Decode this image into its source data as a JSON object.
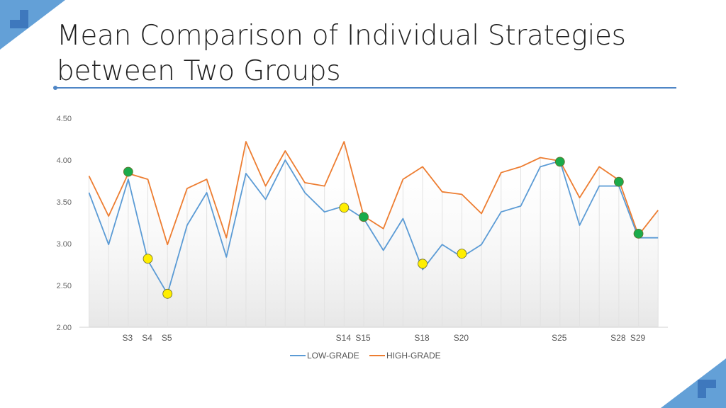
{
  "slide": {
    "title_line1": "Mean Comparison of Individual Strategies",
    "title_line2": "between Two Groups",
    "accent_color": "#4f86c6",
    "corner_color": "#5b9bd5"
  },
  "chart_data": {
    "type": "line",
    "title": "",
    "xlabel": "",
    "ylabel": "",
    "ylim": [
      2.0,
      4.5
    ],
    "y_ticks": [
      "2.00",
      "2.50",
      "3.00",
      "3.50",
      "4.00",
      "4.50"
    ],
    "x": [
      "S1",
      "S2",
      "S3",
      "S4",
      "S5",
      "S6",
      "S7",
      "S8",
      "S9",
      "S10",
      "S11",
      "S12",
      "S13",
      "S14",
      "S15",
      "S16",
      "S17",
      "S18",
      "S19",
      "S20",
      "S21",
      "S22",
      "S23",
      "S24",
      "S25",
      "S26",
      "S27",
      "S28",
      "S29",
      "S30"
    ],
    "shown_category_labels": [
      "S3",
      "S4",
      "S5",
      "S14",
      "S15",
      "S18",
      "S20",
      "S25",
      "S28",
      "S29"
    ],
    "grid": "vertical",
    "legend_position": "bottom",
    "series": [
      {
        "name": "LOW-GRADE",
        "color": "#5b9bd5",
        "values": [
          3.61,
          2.99,
          3.77,
          2.8,
          2.4,
          3.22,
          3.61,
          2.84,
          3.84,
          3.53,
          4.0,
          3.61,
          3.38,
          3.45,
          3.3,
          2.92,
          3.3,
          2.69,
          2.99,
          2.84,
          2.99,
          3.38,
          3.45,
          3.92,
          3.99,
          3.22,
          3.69,
          3.69,
          3.07,
          3.07
        ]
      },
      {
        "name": "HIGH-GRADE",
        "color": "#ed7d31",
        "values": [
          3.81,
          3.33,
          3.84,
          3.77,
          2.99,
          3.66,
          3.77,
          3.07,
          4.22,
          3.69,
          4.11,
          3.73,
          3.69,
          4.22,
          3.33,
          3.18,
          3.77,
          3.92,
          3.62,
          3.59,
          3.36,
          3.85,
          3.92,
          4.03,
          3.99,
          3.55,
          3.92,
          3.76,
          3.1,
          3.4
        ]
      }
    ],
    "highlights": [
      {
        "category": "S3",
        "value": 3.86,
        "color": "#1aab4b"
      },
      {
        "category": "S4",
        "value": 2.82,
        "color": "#ffee00"
      },
      {
        "category": "S5",
        "value": 2.4,
        "color": "#ffee00"
      },
      {
        "category": "S14",
        "value": 3.43,
        "color": "#ffee00"
      },
      {
        "category": "S15",
        "value": 3.32,
        "color": "#1aab4b"
      },
      {
        "category": "S18",
        "value": 2.76,
        "color": "#ffee00"
      },
      {
        "category": "S20",
        "value": 2.88,
        "color": "#ffee00"
      },
      {
        "category": "S25",
        "value": 3.98,
        "color": "#1aab4b"
      },
      {
        "category": "S28",
        "value": 3.74,
        "color": "#1aab4b"
      },
      {
        "category": "S29",
        "value": 3.12,
        "color": "#1aab4b"
      }
    ]
  }
}
